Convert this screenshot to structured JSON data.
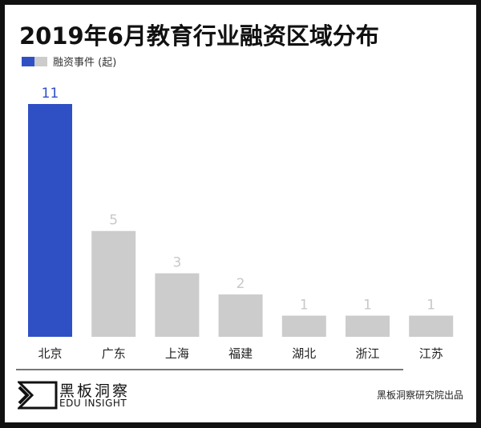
{
  "colors": {
    "highlight": "#2f50c4",
    "bar": "#cccccc",
    "label_highlight": "#2f50c4",
    "label": "#c8c8c8"
  },
  "chart_data": {
    "type": "bar",
    "title": "2019年6月教育行业融资区域分布",
    "categories": [
      "北京",
      "广东",
      "上海",
      "福建",
      "湖北",
      "浙江",
      "江苏"
    ],
    "series": [
      {
        "name": "融资事件 (起)",
        "values": [
          11,
          5,
          3,
          2,
          1,
          1,
          1
        ]
      }
    ],
    "highlight": "北京",
    "ylim": [
      0,
      11
    ],
    "grid": false,
    "legend": "top-left"
  },
  "branding": {
    "logo_cn": "黑板洞察",
    "logo_en": "EDU INSIGHT",
    "credit": "黑板洞察研究院出品"
  }
}
